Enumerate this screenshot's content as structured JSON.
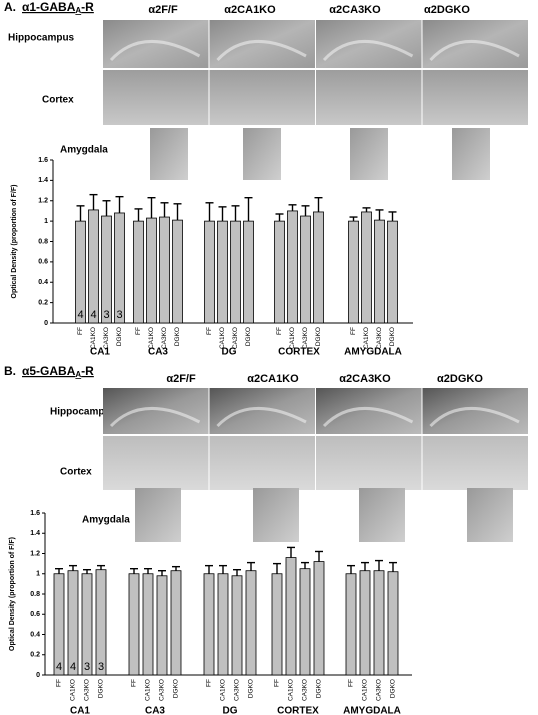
{
  "chart_data": [
    {
      "type": "bar",
      "panel_label": "A.",
      "title": "α1-GABA",
      "title_subscript": "A",
      "title_suffix": "-R",
      "column_headers": [
        "α2F/F",
        "α2CA1KO",
        "α2CA3KO",
        "α2DGKO"
      ],
      "row_labels": [
        "Hippocampus",
        "Cortex",
        "Amygdala"
      ],
      "ylabel": "Optical Density (proportion of F/F)",
      "ylim": [
        0,
        1.6
      ],
      "yticks": [
        0,
        0.2,
        0.4,
        0.6,
        0.8,
        1,
        1.2,
        1.4,
        1.6
      ],
      "categories": [
        "CA1",
        "CA3",
        "DG",
        "CORTEX",
        "AMYGDALA"
      ],
      "n_labels": [
        4,
        4,
        3,
        3
      ],
      "series": [
        {
          "name": "FF",
          "color": "#c0c0c0",
          "values": [
            1.0,
            1.0,
            1.0,
            1.0,
            1.0
          ],
          "errors": [
            0.15,
            0.12,
            0.18,
            0.07,
            0.04
          ]
        },
        {
          "name": "CA1KO",
          "color": "#c0c0c0",
          "values": [
            1.11,
            1.03,
            1.0,
            1.1,
            1.09
          ],
          "errors": [
            0.15,
            0.2,
            0.14,
            0.06,
            0.04
          ]
        },
        {
          "name": "CA3KO",
          "color": "#c0c0c0",
          "values": [
            1.05,
            1.04,
            1.0,
            1.05,
            1.01
          ],
          "errors": [
            0.15,
            0.14,
            0.15,
            0.1,
            0.1
          ]
        },
        {
          "name": "DGKO",
          "color": "#c0c0c0",
          "values": [
            1.08,
            1.01,
            1.0,
            1.09,
            1.0
          ],
          "errors": [
            0.16,
            0.16,
            0.23,
            0.14,
            0.09
          ]
        }
      ]
    },
    {
      "type": "bar",
      "panel_label": "B.",
      "title": "α5-GABA",
      "title_subscript": "A",
      "title_suffix": "-R",
      "column_headers": [
        "α2F/F",
        "α2CA1KO",
        "α2CA3KO",
        "α2DGKO"
      ],
      "row_labels": [
        "Hippocampus",
        "Cortex",
        "Amygdala"
      ],
      "ylabel": "Optical Density (proportion of F/F)",
      "ylim": [
        0,
        1.6
      ],
      "yticks": [
        0,
        0.2,
        0.4,
        0.6,
        0.8,
        1,
        1.2,
        1.4,
        1.6
      ],
      "categories": [
        "CA1",
        "CA3",
        "DG",
        "CORTEX",
        "AMYGDALA"
      ],
      "n_labels": [
        4,
        4,
        3,
        3
      ],
      "series": [
        {
          "name": "FF",
          "color": "#c0c0c0",
          "values": [
            1.0,
            1.0,
            1.0,
            1.0,
            1.0
          ],
          "errors": [
            0.05,
            0.05,
            0.08,
            0.1,
            0.08
          ]
        },
        {
          "name": "CA1KO",
          "color": "#c0c0c0",
          "values": [
            1.03,
            1.0,
            1.0,
            1.16,
            1.03
          ],
          "errors": [
            0.05,
            0.05,
            0.08,
            0.1,
            0.08
          ]
        },
        {
          "name": "CA3KO",
          "color": "#c0c0c0",
          "values": [
            1.0,
            0.98,
            0.98,
            1.05,
            1.03
          ],
          "errors": [
            0.04,
            0.05,
            0.06,
            0.06,
            0.1
          ]
        },
        {
          "name": "DGKO",
          "color": "#c0c0c0",
          "values": [
            1.04,
            1.03,
            1.03,
            1.12,
            1.02
          ],
          "errors": [
            0.04,
            0.04,
            0.08,
            0.1,
            0.09
          ]
        }
      ]
    }
  ]
}
